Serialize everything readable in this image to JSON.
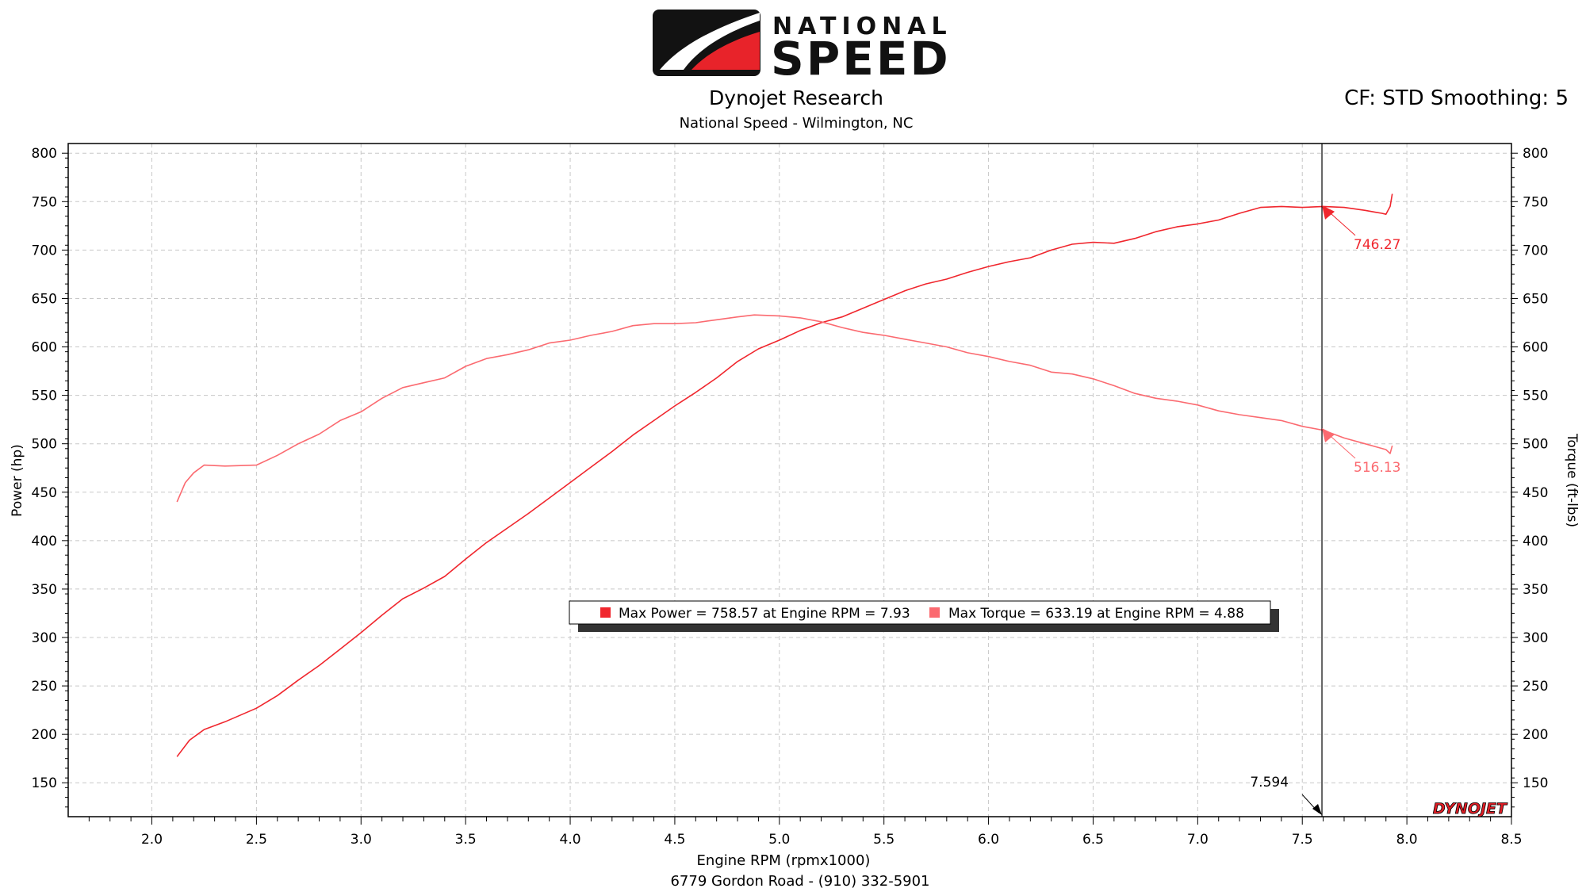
{
  "brand": {
    "top_word": "NATIONAL",
    "main_word": "SPEED",
    "red": "#e8232a"
  },
  "header": {
    "title": "Dynojet Research",
    "subtitle": "National Speed - Wilmington, NC",
    "cf_info": "CF: STD Smoothing: 5"
  },
  "footer": {
    "address": "6779 Gordon Road - (910) 332-5901",
    "watermark": "DYNOJET"
  },
  "chart_data": {
    "type": "line",
    "xlabel": "Engine RPM (rpmx1000)",
    "ylabel": "Power (hp)",
    "y2label": "Torque (ft-lbs)",
    "xlim": [
      1.6,
      8.5
    ],
    "ylim": [
      115,
      810
    ],
    "x_ticks": [
      "2.0",
      "2.5",
      "3.0",
      "3.5",
      "4.0",
      "4.5",
      "5.0",
      "5.5",
      "6.0",
      "6.5",
      "7.0",
      "7.5",
      "8.0",
      "8.5"
    ],
    "y_ticks": [
      "150",
      "200",
      "250",
      "300",
      "350",
      "400",
      "450",
      "500",
      "550",
      "600",
      "650",
      "700",
      "750",
      "800"
    ],
    "y2_ticks": [
      "150",
      "200",
      "250",
      "300",
      "350",
      "400",
      "450",
      "500",
      "550",
      "600",
      "650",
      "700",
      "750",
      "800"
    ],
    "grid": true,
    "series": [
      {
        "key": "power",
        "color": "#f0262d",
        "x": [
          2.12,
          2.18,
          2.25,
          2.35,
          2.5,
          2.6,
          2.7,
          2.8,
          2.9,
          3.0,
          3.1,
          3.2,
          3.3,
          3.4,
          3.5,
          3.6,
          3.7,
          3.8,
          3.9,
          4.0,
          4.1,
          4.2,
          4.3,
          4.4,
          4.5,
          4.6,
          4.7,
          4.8,
          4.9,
          5.0,
          5.1,
          5.2,
          5.3,
          5.4,
          5.5,
          5.6,
          5.7,
          5.8,
          5.9,
          6.0,
          6.1,
          6.2,
          6.3,
          6.4,
          6.5,
          6.6,
          6.7,
          6.8,
          6.9,
          7.0,
          7.1,
          7.2,
          7.3,
          7.4,
          7.5,
          7.6,
          7.7,
          7.8,
          7.85,
          7.88,
          7.9,
          7.92,
          7.93
        ],
        "y": [
          177,
          194,
          205,
          213,
          227,
          240,
          256,
          271,
          288,
          305,
          323,
          340,
          351,
          363,
          381,
          398,
          413,
          428,
          444,
          460,
          476,
          492,
          509,
          524,
          539,
          553,
          568,
          585,
          598,
          607,
          617,
          625,
          631,
          640,
          649,
          658,
          665,
          670,
          677,
          683,
          688,
          692,
          700,
          706,
          708,
          707,
          712,
          719,
          724,
          727,
          731,
          738,
          744,
          745,
          744,
          745,
          744,
          741,
          739,
          738,
          737,
          745,
          758
        ]
      },
      {
        "key": "torque",
        "color": "#fb6a70",
        "x": [
          2.12,
          2.16,
          2.2,
          2.25,
          2.35,
          2.5,
          2.6,
          2.7,
          2.8,
          2.9,
          3.0,
          3.1,
          3.2,
          3.3,
          3.4,
          3.5,
          3.6,
          3.7,
          3.8,
          3.9,
          4.0,
          4.1,
          4.2,
          4.3,
          4.4,
          4.5,
          4.6,
          4.7,
          4.8,
          4.88,
          5.0,
          5.1,
          5.2,
          5.3,
          5.4,
          5.5,
          5.6,
          5.7,
          5.8,
          5.9,
          6.0,
          6.1,
          6.2,
          6.3,
          6.4,
          6.5,
          6.6,
          6.7,
          6.8,
          6.9,
          7.0,
          7.1,
          7.2,
          7.3,
          7.4,
          7.5,
          7.6,
          7.7,
          7.8,
          7.85,
          7.9,
          7.92,
          7.93
        ],
        "y": [
          440,
          460,
          470,
          478,
          477,
          478,
          488,
          500,
          510,
          524,
          533,
          547,
          558,
          563,
          568,
          580,
          588,
          592,
          597,
          604,
          607,
          612,
          616,
          622,
          624,
          624,
          625,
          628,
          631,
          633,
          632,
          630,
          626,
          620,
          615,
          612,
          608,
          604,
          600,
          594,
          590,
          585,
          581,
          574,
          572,
          567,
          560,
          552,
          547,
          544,
          540,
          534,
          530,
          527,
          524,
          518,
          514,
          506,
          500,
          497,
          494,
          490,
          498
        ]
      }
    ],
    "cursor": {
      "x": 7.594,
      "label": "7.594"
    },
    "cursor_values": [
      {
        "series": "power",
        "value": 746.27,
        "label": "746.27"
      },
      {
        "series": "torque",
        "value": 516.13,
        "label": "516.13"
      }
    ],
    "legend": {
      "placement": "center",
      "entries": [
        {
          "series": "power",
          "text": "Max Power = 758.57 at Engine RPM = 7.93"
        },
        {
          "series": "torque",
          "text": "Max Torque = 633.19 at Engine RPM = 4.88"
        }
      ]
    }
  }
}
